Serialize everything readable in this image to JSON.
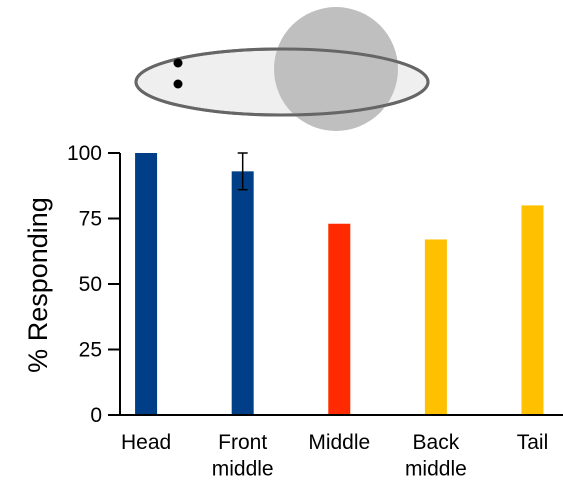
{
  "chart_data": {
    "type": "bar",
    "y_label": "% Responding",
    "categories": [
      "Head",
      "Front middle",
      "Middle",
      "Back middle",
      "Tail"
    ],
    "values": [
      100,
      93,
      73,
      67,
      80
    ],
    "errors": [
      null,
      7,
      null,
      null,
      null
    ],
    "colors": [
      "#003f87",
      "#003f87",
      "#ff2a00",
      "#ffc000",
      "#ffc000"
    ],
    "ylim": [
      0,
      100
    ],
    "yticks": [
      0,
      25,
      50,
      75,
      100
    ]
  }
}
